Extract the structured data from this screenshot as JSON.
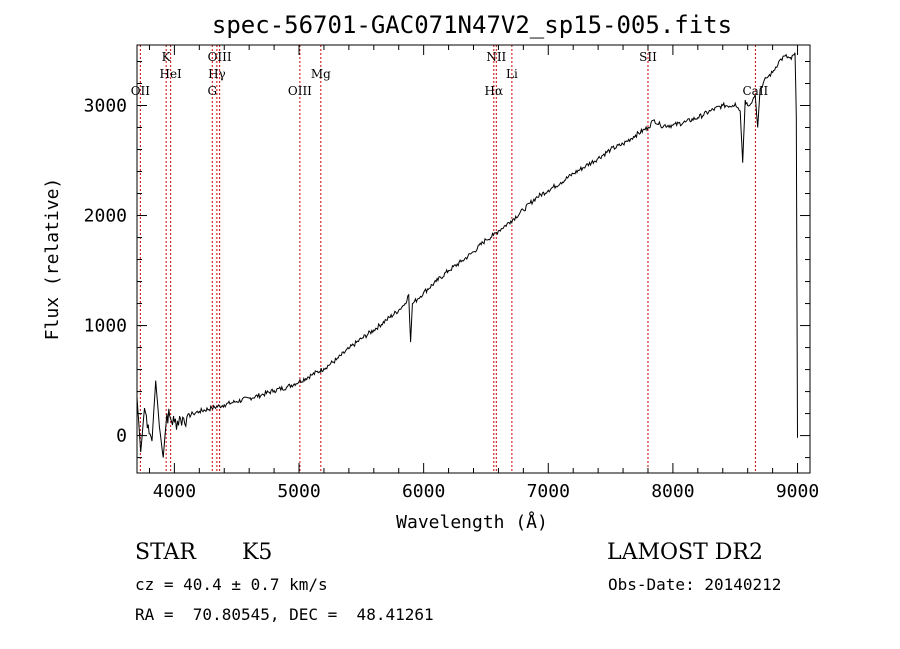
{
  "chart_data": {
    "type": "line",
    "title": "spec-56701-GAC071N47V2_sp15-005.fits",
    "xlabel": "Wavelength (Å)",
    "ylabel": "Flux (relative)",
    "xlim": [
      3700,
      9100
    ],
    "ylim": [
      -340,
      3550
    ],
    "x_ticks": [
      4000,
      5000,
      6000,
      7000,
      8000,
      9000
    ],
    "y_ticks": [
      0,
      1000,
      2000,
      3000
    ],
    "grid": false,
    "line_color": "#000000",
    "marker_color": "#cc0000",
    "spectrum": {
      "x": [
        3700,
        3730,
        3760,
        3790,
        3820,
        3850,
        3880,
        3910,
        3940,
        3970,
        4000,
        4050,
        4100,
        4150,
        4200,
        4300,
        4400,
        4500,
        4600,
        4700,
        4800,
        4900,
        5000,
        5100,
        5200,
        5300,
        5400,
        5500,
        5600,
        5700,
        5800,
        5850,
        5880,
        5895,
        5910,
        5950,
        6000,
        6100,
        6200,
        6300,
        6400,
        6500,
        6560,
        6600,
        6700,
        6800,
        6900,
        7000,
        7100,
        7200,
        7300,
        7400,
        7500,
        7600,
        7700,
        7800,
        7850,
        7900,
        8000,
        8100,
        8200,
        8300,
        8400,
        8480,
        8500,
        8540,
        8560,
        8580,
        8600,
        8640,
        8660,
        8680,
        8700,
        8750,
        8800,
        8850,
        8900,
        8950,
        8980,
        8990,
        9000
      ],
      "y": [
        350,
        -150,
        250,
        100,
        -50,
        500,
        80,
        -200,
        200,
        150,
        120,
        150,
        170,
        200,
        220,
        250,
        280,
        310,
        340,
        370,
        410,
        440,
        490,
        550,
        610,
        690,
        790,
        880,
        960,
        1050,
        1140,
        1200,
        1280,
        850,
        1200,
        1240,
        1300,
        1400,
        1500,
        1580,
        1670,
        1780,
        1820,
        1860,
        1950,
        2050,
        2160,
        2230,
        2300,
        2380,
        2450,
        2520,
        2600,
        2650,
        2730,
        2800,
        2870,
        2820,
        2820,
        2850,
        2890,
        2950,
        3000,
        3000,
        3020,
        2950,
        2480,
        3050,
        3000,
        3050,
        3100,
        2800,
        3150,
        3250,
        3300,
        3400,
        3450,
        3420,
        3480,
        2900,
        -20
      ]
    },
    "spectral_lines": [
      {
        "label": "OII",
        "wavelength": 3727,
        "row": 3
      },
      {
        "label": "K",
        "wavelength": 3934,
        "row": 1
      },
      {
        "label": "HeI",
        "wavelength": 3970,
        "row": 2
      },
      {
        "label": "OIII",
        "wavelength": 4363,
        "row": 1
      },
      {
        "label": "Hγ",
        "wavelength": 4341,
        "row": 2
      },
      {
        "label": "G",
        "wavelength": 4304,
        "row": 3
      },
      {
        "label": "OIII",
        "wavelength": 5007,
        "row": 3
      },
      {
        "label": "Mg",
        "wavelength": 5175,
        "row": 2
      },
      {
        "label": "NII",
        "wavelength": 6583,
        "row": 1
      },
      {
        "label": "Hα",
        "wavelength": 6563,
        "row": 3
      },
      {
        "label": "Li",
        "wavelength": 6708,
        "row": 2
      },
      {
        "label": "SII",
        "wavelength": 7800,
        "row": 1
      },
      {
        "label": "CaII",
        "wavelength": 8662,
        "row": 3
      }
    ]
  },
  "info": {
    "class_label": "STAR",
    "subclass": "K5",
    "survey": "LAMOST DR2",
    "redshift": "cz = 40.4 ± 0.7 km/s",
    "obs_date": "Obs-Date: 20140212",
    "coords": "RA =  70.80545, DEC =  48.41261"
  }
}
